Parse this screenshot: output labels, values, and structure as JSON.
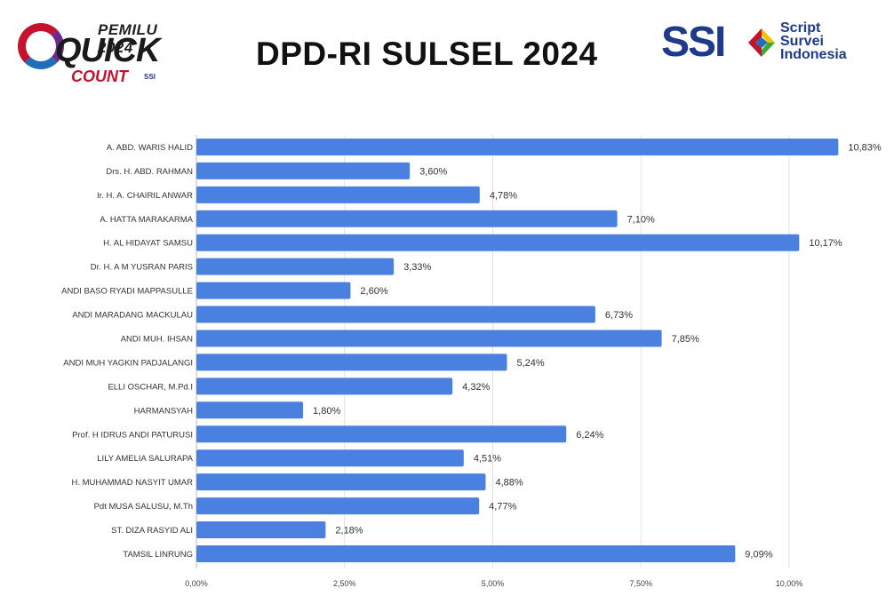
{
  "header": {
    "title": "DPD-RI SULSEL 2024",
    "quick_count_logo": {
      "line1": "PEMILU 2024",
      "line2": "QUICK",
      "line3": "COUNT",
      "badge": "SSI"
    },
    "ssi_logo": {
      "brand": "SSI",
      "line1": "Script",
      "line2": "Survei",
      "line3": "Indonesia"
    }
  },
  "chart_data": {
    "type": "bar",
    "orientation": "horizontal",
    "categories": [
      "A. ABD. WARIS HALID",
      "Drs. H. ABD. RAHMAN",
      "Ir. H. A. CHAIRIL ANWAR",
      "A. HATTA MARAKARMA",
      "H. AL HIDAYAT SAMSU",
      "Dr. H. A M YUSRAN PARIS",
      "ANDI BASO RYADI MAPPASULLE",
      "ANDI MARADANG MACKULAU",
      "ANDI MUH. IHSAN",
      "ANDI MUH YAGKIN PADJALANGI",
      "ELLI OSCHAR, M.Pd.I",
      "HARMANSYAH",
      "Prof.  H IDRUS ANDI PATURUSI",
      "LILY AMELIA SALURAPA",
      "H. MUHAMMAD NASYIT UMAR",
      "Pdt MUSA SALUSU, M.Th",
      "ST. DIZA RASYID ALI",
      "TAMSIL LINRUNG"
    ],
    "values": [
      10.83,
      3.6,
      4.78,
      7.1,
      10.17,
      3.33,
      2.6,
      6.73,
      7.85,
      5.24,
      4.32,
      1.8,
      6.24,
      4.51,
      4.88,
      4.77,
      2.18,
      9.09
    ],
    "value_labels": [
      "10,83%",
      "3,60%",
      "4,78%",
      "7,10%",
      "10,17%",
      "3,33%",
      "2,60%",
      "6,73%",
      "7,85%",
      "5,24%",
      "4,32%",
      "1,80%",
      "6,24%",
      "4,51%",
      "4,88%",
      "4,77%",
      "2,18%",
      "9,09%"
    ],
    "x_ticks": [
      0,
      2.5,
      5,
      7.5,
      10
    ],
    "x_tick_labels": [
      "0,00%",
      "2,50%",
      "5,00%",
      "7,50%",
      "10,00%"
    ],
    "xlim": [
      0,
      11.5
    ],
    "bar_color": "#4a80e0",
    "grid": true,
    "title": "",
    "xlabel": "",
    "ylabel": ""
  }
}
